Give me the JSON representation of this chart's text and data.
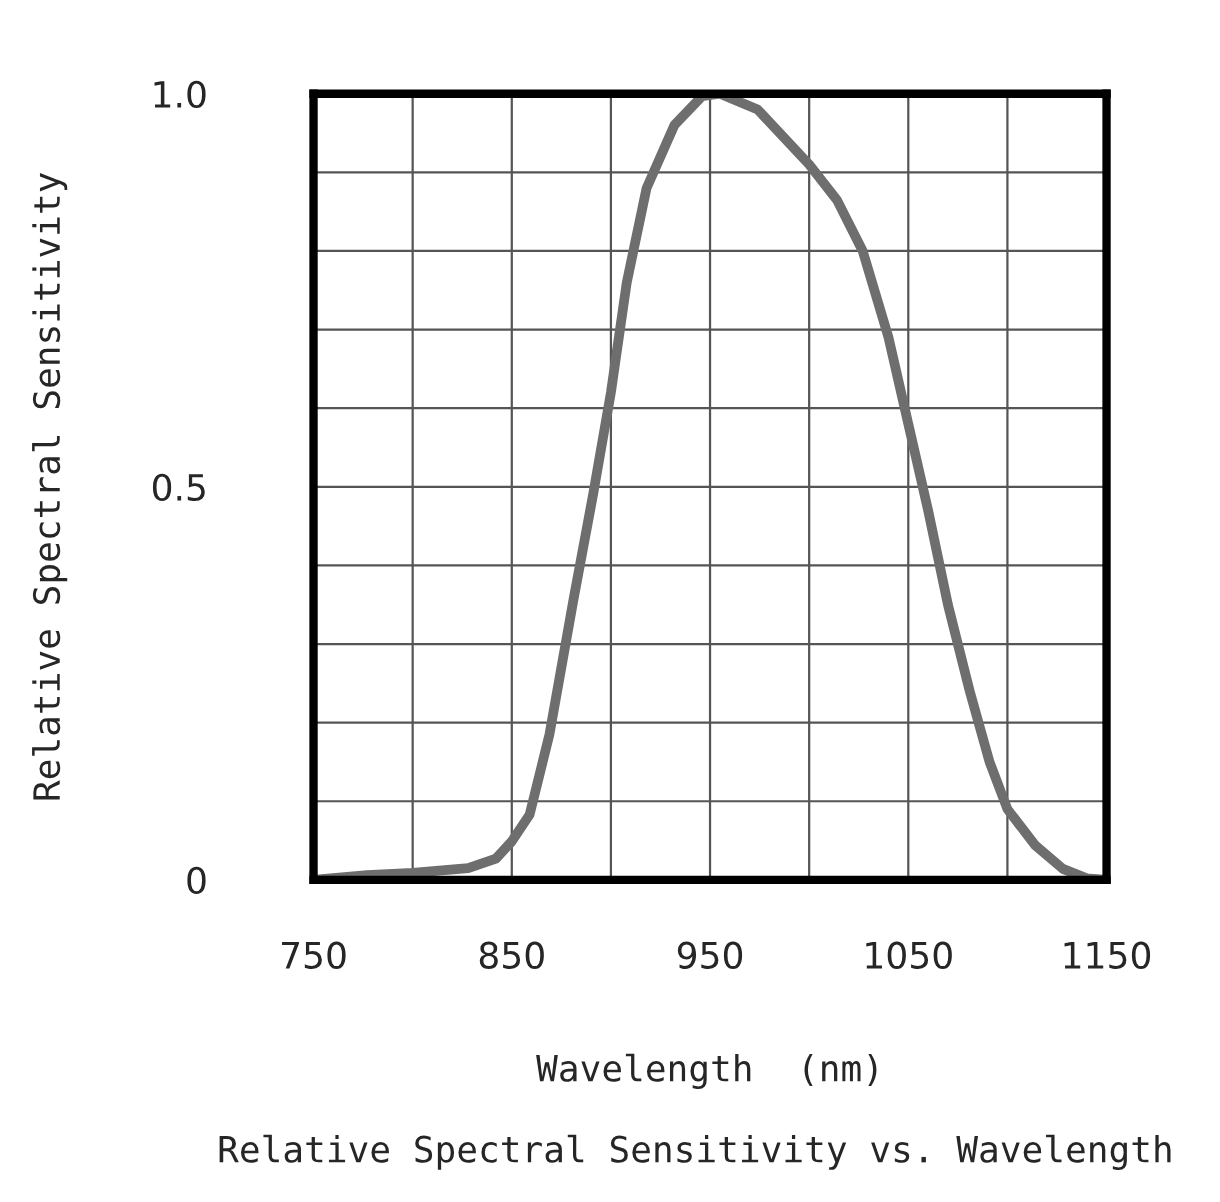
{
  "chart_data": {
    "type": "line",
    "title": "Relative Spectral Sensitivity vs. Wavelength",
    "xlabel": "Wavelength  (nm)",
    "ylabel": "Relative Spectral Sensitivity",
    "series": [
      {
        "color": "#6e6e6e",
        "x": [
          750,
          777,
          800,
          828,
          842,
          850,
          859,
          869,
          881,
          891,
          900,
          908,
          918,
          932,
          946,
          955,
          974,
          1000,
          1014,
          1027,
          1040,
          1050,
          1060,
          1070,
          1081,
          1091,
          1100,
          1114,
          1128,
          1140,
          1150
        ],
        "values": [
          0.0,
          0.006,
          0.009,
          0.015,
          0.027,
          0.049,
          0.083,
          0.185,
          0.355,
          0.49,
          0.62,
          0.76,
          0.88,
          0.96,
          0.997,
          1.0,
          0.98,
          0.91,
          0.865,
          0.8,
          0.69,
          0.58,
          0.47,
          0.35,
          0.24,
          0.15,
          0.09,
          0.044,
          0.014,
          0.002,
          0.0
        ]
      }
    ],
    "xlim": [
      750,
      1150
    ],
    "xticks": [
      750,
      {
        "value": 800,
        "label": null
      },
      850,
      {
        "value": 900,
        "label": null
      },
      950,
      {
        "value": 1000,
        "label": null
      },
      1050,
      {
        "value": 1100,
        "label": null
      },
      1150
    ],
    "ylim": [
      0,
      1.0
    ],
    "yticks": [
      {
        "value": 0,
        "label": "0"
      },
      {
        "value": 0.1,
        "label": null
      },
      {
        "value": 0.2,
        "label": null
      },
      {
        "value": 0.3,
        "label": null
      },
      {
        "value": 0.4,
        "label": null
      },
      0.5,
      {
        "value": 0.6,
        "label": null
      },
      {
        "value": 0.7,
        "label": null
      },
      {
        "value": 0.8,
        "label": null
      },
      {
        "value": 0.9,
        "label": null
      },
      {
        "value": 1.0,
        "label": "1.0"
      }
    ],
    "grid": true,
    "marker": "none",
    "line_style": "solid",
    "legend": false
  }
}
